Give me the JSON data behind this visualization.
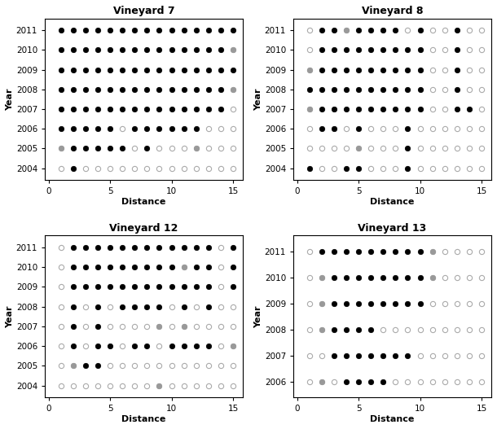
{
  "vineyards": [
    {
      "title": "Vineyard 7",
      "years": [
        2004,
        2005,
        2006,
        2007,
        2008,
        2009,
        2010,
        2011
      ],
      "distances": [
        1,
        2,
        3,
        4,
        5,
        6,
        7,
        8,
        9,
        10,
        11,
        12,
        13,
        14,
        15
      ],
      "dots": {
        "2011": {
          "black": [
            1,
            2,
            3,
            4,
            5,
            6,
            7,
            8,
            9,
            10,
            11,
            12,
            13,
            14,
            15
          ],
          "gray": [],
          "open": []
        },
        "2010": {
          "black": [
            1,
            2,
            3,
            4,
            5,
            6,
            7,
            8,
            9,
            10,
            11,
            12,
            13,
            14
          ],
          "gray": [
            15
          ],
          "open": []
        },
        "2009": {
          "black": [
            1,
            2,
            3,
            4,
            5,
            6,
            7,
            8,
            9,
            10,
            11,
            12,
            13,
            14,
            15
          ],
          "gray": [],
          "open": []
        },
        "2008": {
          "black": [
            1,
            2,
            3,
            4,
            5,
            6,
            7,
            8,
            9,
            10,
            11,
            12,
            13,
            14
          ],
          "gray": [
            15
          ],
          "open": []
        },
        "2007": {
          "black": [
            1,
            2,
            3,
            4,
            5,
            6,
            7,
            8,
            9,
            10,
            11,
            12,
            13,
            14
          ],
          "gray": [],
          "open": [
            15
          ]
        },
        "2006": {
          "black": [
            1,
            2,
            3,
            4,
            5,
            7,
            8,
            9,
            10,
            11,
            12
          ],
          "gray": [],
          "open": [
            6,
            13,
            14,
            15
          ]
        },
        "2005": {
          "black": [
            2,
            3,
            4,
            5,
            6,
            8
          ],
          "gray": [
            1,
            12
          ],
          "open": [
            7,
            9,
            10,
            11,
            13,
            14,
            15
          ]
        },
        "2004": {
          "black": [
            2
          ],
          "gray": [],
          "open": [
            1,
            3,
            4,
            5,
            6,
            7,
            8,
            9,
            10,
            11,
            12,
            13,
            14,
            15
          ]
        }
      }
    },
    {
      "title": "Vineyard 8",
      "years": [
        2004,
        2005,
        2006,
        2007,
        2008,
        2009,
        2010,
        2011
      ],
      "distances": [
        1,
        2,
        3,
        4,
        5,
        6,
        7,
        8,
        9,
        10,
        11,
        12,
        13,
        14,
        15
      ],
      "dots": {
        "2011": {
          "black": [
            2,
            3,
            5,
            6,
            7,
            8,
            10,
            13
          ],
          "gray": [
            4,
            7
          ],
          "open": [
            1,
            9,
            11,
            12,
            14,
            15
          ]
        },
        "2010": {
          "black": [
            2,
            3,
            4,
            5,
            6,
            7,
            8,
            9,
            10,
            13
          ],
          "gray": [],
          "open": [
            1,
            11,
            12,
            14,
            15
          ]
        },
        "2009": {
          "black": [
            2,
            3,
            4,
            5,
            6,
            7,
            8,
            9,
            10,
            13
          ],
          "gray": [
            1
          ],
          "open": [
            11,
            12,
            14,
            15
          ]
        },
        "2008": {
          "black": [
            1,
            2,
            3,
            4,
            5,
            6,
            7,
            8,
            9,
            10,
            13
          ],
          "gray": [],
          "open": [
            11,
            12,
            14,
            15
          ]
        },
        "2007": {
          "black": [
            2,
            3,
            4,
            5,
            6,
            7,
            8,
            9,
            10,
            13,
            14
          ],
          "gray": [
            1,
            3
          ],
          "open": [
            11,
            12,
            15
          ]
        },
        "2006": {
          "black": [
            2,
            3,
            5,
            9
          ],
          "gray": [
            3
          ],
          "open": [
            1,
            4,
            6,
            7,
            8,
            10,
            11,
            12,
            13,
            14,
            15
          ]
        },
        "2005": {
          "black": [
            9
          ],
          "gray": [
            5
          ],
          "open": [
            1,
            2,
            3,
            4,
            6,
            7,
            8,
            10,
            11,
            12,
            13,
            14,
            15
          ]
        },
        "2004": {
          "black": [
            1,
            4,
            5,
            9
          ],
          "gray": [],
          "open": [
            2,
            3,
            6,
            7,
            8,
            10,
            11,
            12,
            13,
            14,
            15
          ]
        }
      }
    },
    {
      "title": "Vineyard 12",
      "years": [
        2004,
        2005,
        2006,
        2007,
        2008,
        2009,
        2010,
        2011
      ],
      "distances": [
        1,
        2,
        3,
        4,
        5,
        6,
        7,
        8,
        9,
        10,
        11,
        12,
        13,
        14,
        15
      ],
      "dots": {
        "2011": {
          "black": [
            2,
            3,
            4,
            5,
            6,
            7,
            8,
            9,
            10,
            11,
            12,
            13,
            15
          ],
          "gray": [],
          "open": [
            1,
            14
          ]
        },
        "2010": {
          "black": [
            2,
            3,
            4,
            5,
            6,
            7,
            8,
            9,
            10,
            12,
            13,
            15
          ],
          "gray": [
            11
          ],
          "open": [
            1,
            14
          ]
        },
        "2009": {
          "black": [
            2,
            3,
            4,
            5,
            6,
            7,
            8,
            9,
            10,
            11,
            12,
            13,
            15
          ],
          "gray": [],
          "open": [
            1,
            14
          ]
        },
        "2008": {
          "black": [
            2,
            4,
            6,
            7,
            8,
            9,
            11,
            13
          ],
          "gray": [],
          "open": [
            1,
            3,
            5,
            10,
            12,
            14,
            15
          ]
        },
        "2007": {
          "black": [
            2,
            4
          ],
          "gray": [
            9,
            11
          ],
          "open": [
            1,
            3,
            5,
            6,
            7,
            8,
            10,
            12,
            13,
            14,
            15
          ]
        },
        "2006": {
          "black": [
            2,
            4,
            5,
            7,
            8,
            10,
            11,
            12,
            13
          ],
          "gray": [
            15
          ],
          "open": [
            1,
            3,
            6,
            9,
            14
          ]
        },
        "2005": {
          "black": [
            3,
            4
          ],
          "gray": [
            2
          ],
          "open": [
            1,
            5,
            6,
            7,
            8,
            9,
            10,
            11,
            12,
            13,
            14,
            15
          ]
        },
        "2004": {
          "black": [],
          "gray": [
            9
          ],
          "open": [
            1,
            2,
            3,
            4,
            5,
            6,
            7,
            8,
            10,
            11,
            12,
            13,
            14,
            15
          ]
        }
      }
    },
    {
      "title": "Vineyard 13",
      "years": [
        2006,
        2007,
        2008,
        2009,
        2010,
        2011
      ],
      "distances": [
        1,
        2,
        3,
        4,
        5,
        6,
        7,
        8,
        9,
        10,
        11,
        12,
        13,
        14,
        15
      ],
      "dots": {
        "2011": {
          "black": [
            2,
            3,
            4,
            5,
            6,
            7,
            8,
            9,
            10
          ],
          "gray": [
            11
          ],
          "open": [
            1,
            12,
            13,
            14,
            15
          ]
        },
        "2010": {
          "black": [
            3,
            4,
            5,
            6,
            7,
            8,
            9,
            10
          ],
          "gray": [
            2,
            11
          ],
          "open": [
            1,
            12,
            13,
            14,
            15
          ]
        },
        "2009": {
          "black": [
            3,
            4,
            5,
            6,
            7,
            8,
            9,
            10
          ],
          "gray": [
            2,
            9
          ],
          "open": [
            1,
            11,
            12,
            13,
            14,
            15
          ]
        },
        "2008": {
          "black": [
            3,
            4,
            5,
            6
          ],
          "gray": [
            2
          ],
          "open": [
            1,
            7,
            8,
            9,
            10,
            11,
            12,
            13,
            14,
            15
          ]
        },
        "2007": {
          "black": [
            3,
            4,
            5,
            6,
            7,
            8,
            9
          ],
          "gray": [
            7
          ],
          "open": [
            1,
            2,
            10,
            11,
            12,
            13,
            14,
            15
          ]
        },
        "2006": {
          "black": [
            4,
            5,
            6,
            7
          ],
          "gray": [
            2,
            7
          ],
          "open": [
            1,
            3,
            8,
            9,
            10,
            11,
            12,
            13,
            14,
            15
          ]
        }
      }
    }
  ],
  "black_color": "#000000",
  "gray_color": "#999999",
  "open_facecolor": "#ffffff",
  "open_edgecolor": "#aaaaaa",
  "marker_size": 4.5,
  "figsize": [
    6.1,
    5.27
  ],
  "dpi": 100
}
